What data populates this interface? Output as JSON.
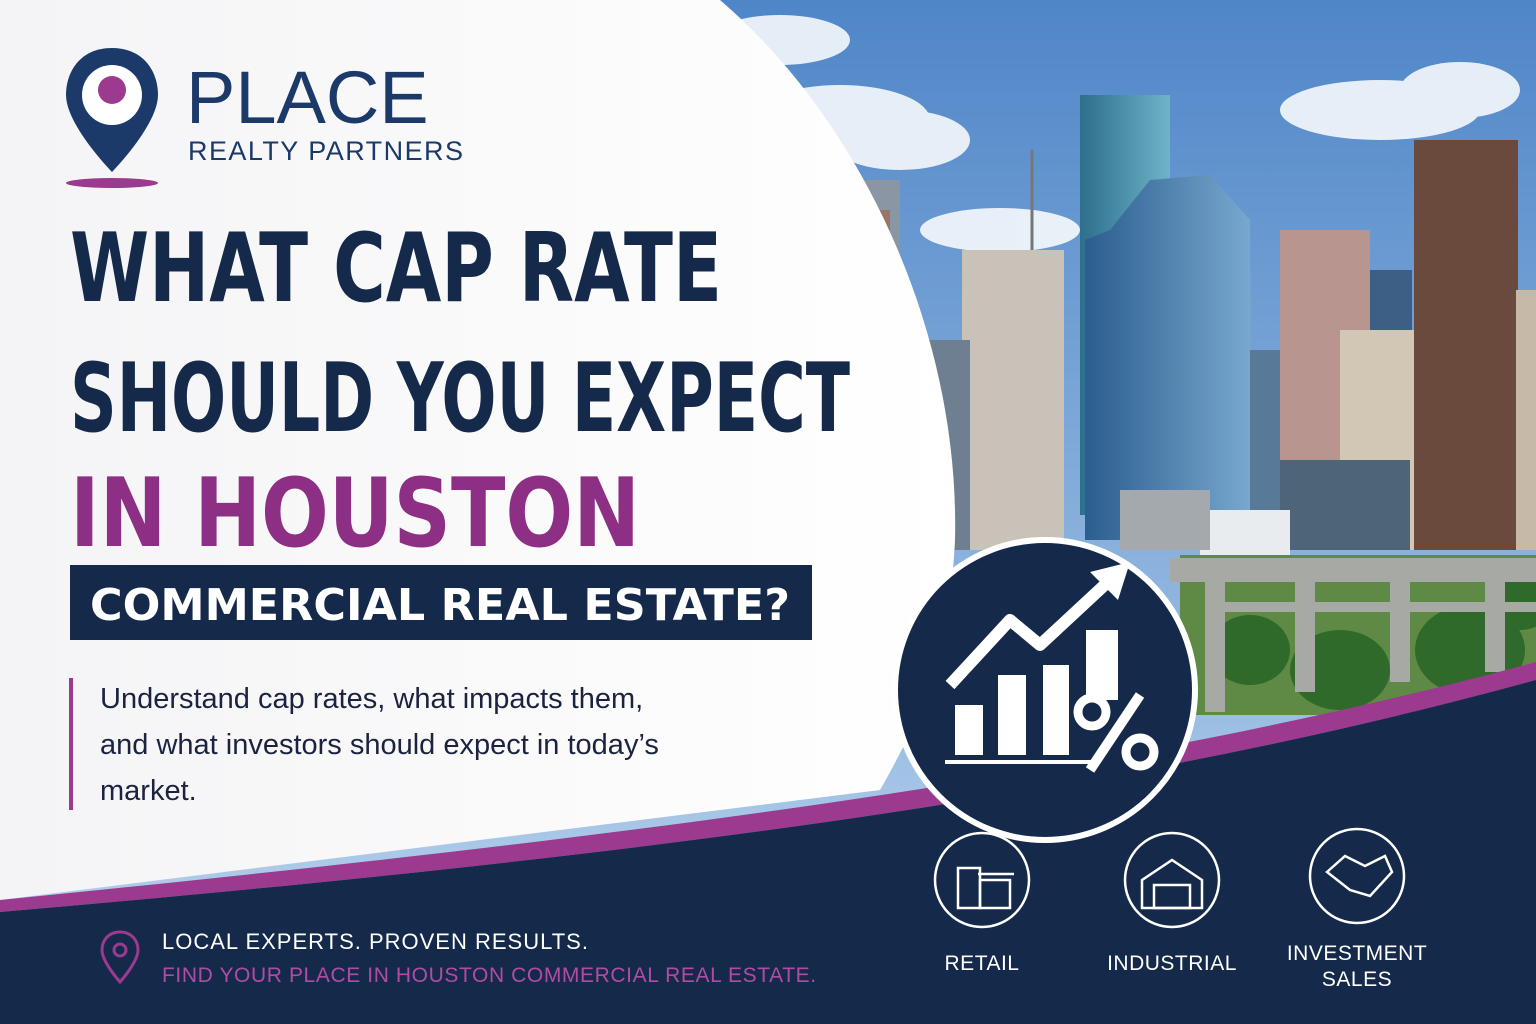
{
  "logo": {
    "name": "PLACE",
    "tagline": "REALTY PARTNERS"
  },
  "headline": {
    "line1": "WHAT CAP RATE",
    "line2": "SHOULD YOU EXPECT",
    "line3": "IN HOUSTON",
    "banner": "COMMERCIAL REAL ESTATE?"
  },
  "body": "Understand cap rates, what impacts them, and what investors should expect in today’s market.",
  "footer": {
    "line1": "LOCAL EXPERTS. PROVEN RESULTS.",
    "line2": "FIND YOUR PLACE IN HOUSTON COMMERCIAL REAL ESTATE."
  },
  "services": [
    "RETAIL",
    "INDUSTRIAL",
    "INVESTMENT SALES"
  ]
}
